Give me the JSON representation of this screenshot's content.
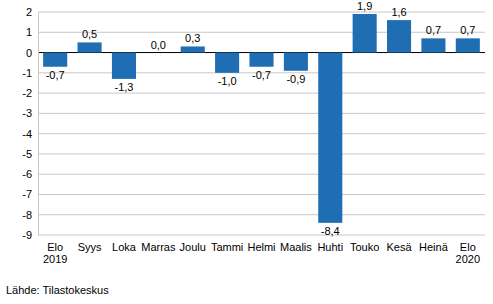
{
  "chart_data": {
    "type": "bar",
    "categories": [
      "Elo 2019",
      "Syys",
      "Loka",
      "Marras",
      "Joulu",
      "Tammi",
      "Helmi",
      "Maalis",
      "Huhti",
      "Touko",
      "Kesä",
      "Heinä",
      "Elo 2020"
    ],
    "values": [
      -0.7,
      0.5,
      -1.3,
      0.0,
      0.3,
      -1.0,
      -0.7,
      -0.9,
      -8.4,
      1.9,
      1.6,
      0.7,
      0.7
    ],
    "value_labels": [
      "-0,7",
      "0,5",
      "-1,3",
      "0,0",
      "0,3",
      "-1,0",
      "-0,7",
      "-0,9",
      "-8,4",
      "1,9",
      "1,6",
      "0,7",
      "0,7"
    ],
    "data_labels": true,
    "color": "#1f6eb3",
    "ylim": [
      -9,
      2
    ],
    "yticks": [
      -9,
      -8,
      -7,
      -6,
      -5,
      -4,
      -3,
      -2,
      -1,
      0,
      1,
      2
    ],
    "grid": true,
    "source": "Lähde: Tilastokeskus"
  }
}
